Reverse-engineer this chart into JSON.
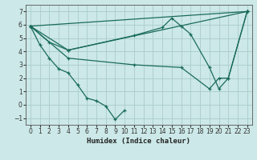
{
  "xlabel": "Humidex (Indice chaleur)",
  "background_color": "#cce8e8",
  "grid_color": "#aacccc",
  "line_color": "#1a6b5a",
  "xlim": [
    -0.5,
    23.5
  ],
  "ylim": [
    -1.5,
    7.5
  ],
  "xticks": [
    0,
    1,
    2,
    3,
    4,
    5,
    6,
    7,
    8,
    9,
    10,
    11,
    12,
    13,
    14,
    15,
    16,
    17,
    18,
    19,
    20,
    21,
    22,
    23
  ],
  "yticks": [
    -1,
    0,
    1,
    2,
    3,
    4,
    5,
    6,
    7
  ],
  "series": [
    {
      "x": [
        0,
        1,
        2,
        3,
        4,
        5,
        6,
        7,
        8,
        9,
        10
      ],
      "y": [
        5.9,
        4.5,
        3.5,
        2.7,
        2.4,
        1.5,
        0.5,
        0.3,
        -0.1,
        -1.1,
        -0.4
      ]
    },
    {
      "x": [
        0,
        2,
        4,
        11,
        14,
        15,
        16,
        17,
        19,
        20,
        21,
        23
      ],
      "y": [
        5.9,
        4.7,
        4.1,
        5.2,
        5.8,
        6.5,
        5.9,
        5.3,
        2.8,
        1.2,
        2.0,
        7.0
      ]
    },
    {
      "x": [
        0,
        4,
        23
      ],
      "y": [
        5.9,
        4.1,
        7.0
      ]
    },
    {
      "x": [
        0,
        23
      ],
      "y": [
        5.9,
        7.0
      ]
    },
    {
      "x": [
        0,
        4,
        11,
        16,
        19,
        20,
        21,
        23
      ],
      "y": [
        5.9,
        3.5,
        3.0,
        2.8,
        1.2,
        2.0,
        2.0,
        7.0
      ]
    }
  ]
}
